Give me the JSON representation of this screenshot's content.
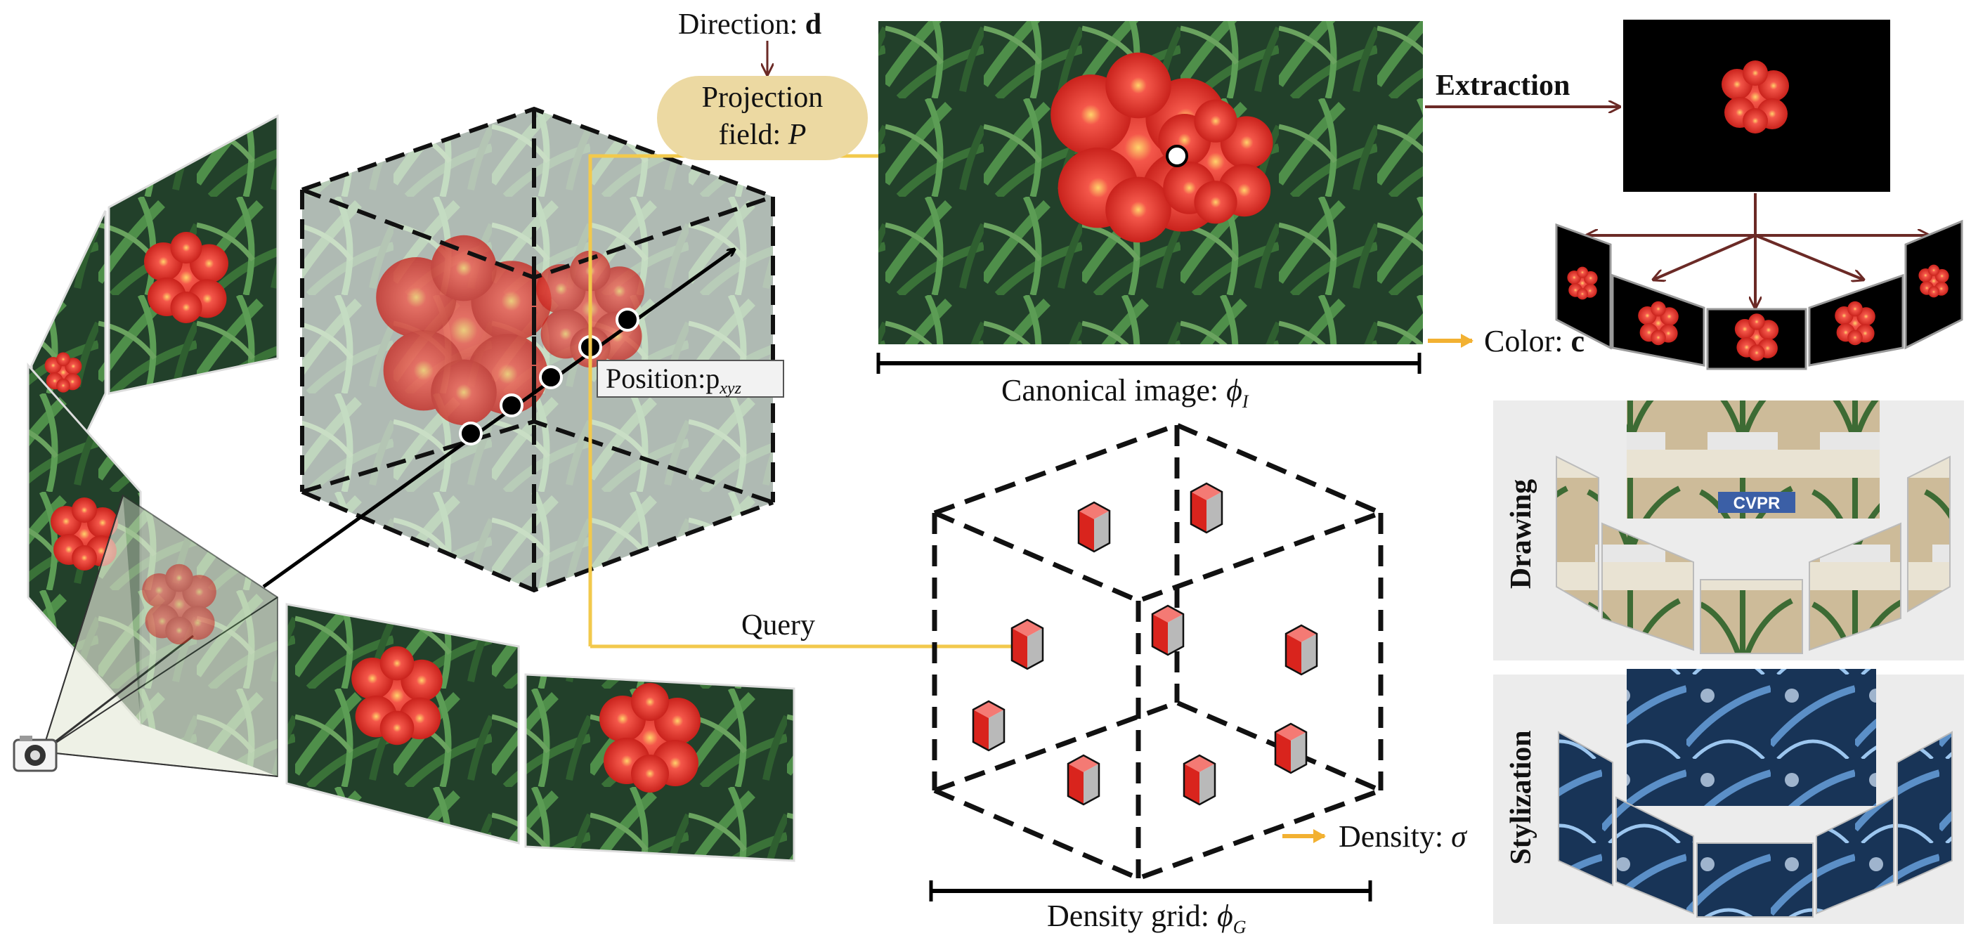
{
  "labels": {
    "direction": "Direction: ",
    "direction_symbol": "d",
    "projection_line1": "Projection",
    "projection_line2": "field: ",
    "projection_symbol": "P",
    "position": "Position:",
    "position_symbol": "p",
    "position_sub": "xyz",
    "canonical": "Canonical image: ",
    "canonical_symbol": "ϕ",
    "canonical_sub": "I",
    "extraction": "Extraction",
    "color": "Color: ",
    "color_symbol": "c",
    "query": "Query",
    "density": "Density: ",
    "density_symbol": "σ",
    "density_grid": "Density grid: ",
    "density_grid_symbol": "ϕ",
    "density_grid_sub": "G",
    "drawing": "Drawing",
    "stylization": "Stylization",
    "cvpr_logo": "CVPR"
  },
  "colors": {
    "accent_yellow": "#f2c94c",
    "projection_fill": "#ecd9a2",
    "arrow_dark_red": "#6b2a26",
    "flower_red": "#e8413a",
    "foliage_green": "#2e5a2c",
    "panel_gray": "#ececec",
    "stylization_blue": "#1c3d66"
  },
  "icons": [
    "camera-icon",
    "flower-photo",
    "red-cube-icon",
    "arrow-icon"
  ]
}
